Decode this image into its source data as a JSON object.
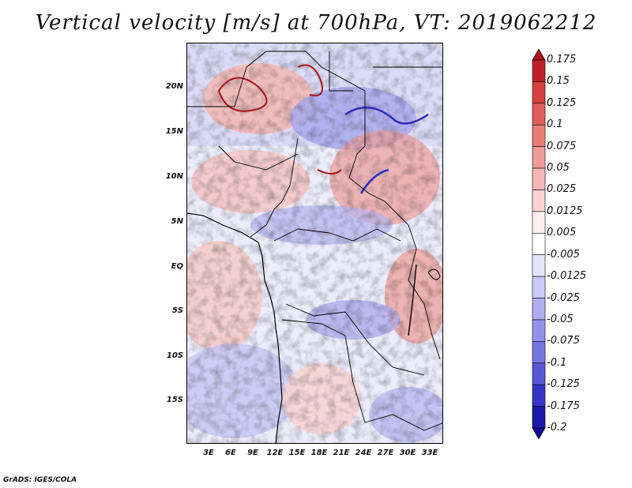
{
  "title": "Vertical velocity [m/s] at 700hPa, VT: 2019062212",
  "credit": "GrADS: IGES/COLA",
  "lat_ticks": [
    "20N",
    "15N",
    "10N",
    "5N",
    "EQ",
    "5S",
    "10S",
    "15S"
  ],
  "lon_ticks": [
    "3E",
    "6E",
    "9E",
    "12E",
    "15E",
    "18E",
    "21E",
    "24E",
    "27E",
    "30E",
    "33E"
  ],
  "colorbar": {
    "labels": [
      "0.175",
      "0.15",
      "0.125",
      "0.1",
      "0.075",
      "0.05",
      "0.025",
      "0.0125",
      "0.005",
      "-0.005",
      "-0.0125",
      "-0.025",
      "-0.05",
      "-0.075",
      "-0.1",
      "-0.125",
      "-0.175",
      "-0.2"
    ],
    "colors": [
      "#a8141c",
      "#c02228",
      "#d6403f",
      "#e15f5a",
      "#ea7d77",
      "#f09b96",
      "#f5b7b3",
      "#f9d4d1",
      "#fdeeed",
      "#ffffff",
      "#e5e5fb",
      "#cacaf6",
      "#aeaef0",
      "#9393ea",
      "#7676e2",
      "#5757d6",
      "#3535c5",
      "#1a1aa8",
      "#0c0c8c"
    ]
  }
}
